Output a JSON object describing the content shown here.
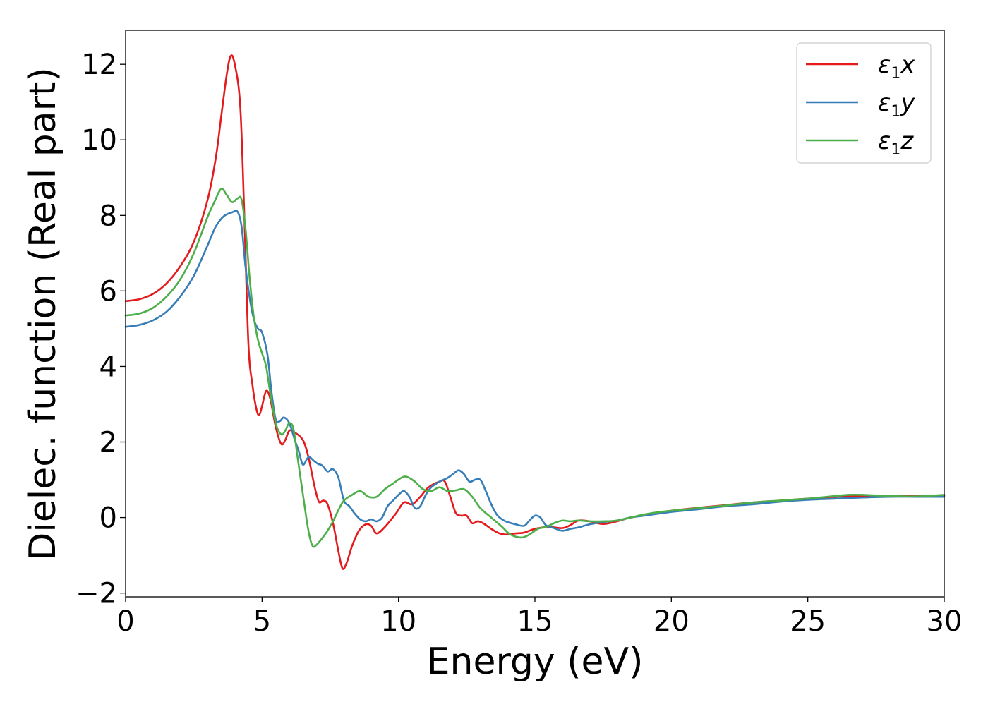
{
  "chart_data": {
    "type": "line",
    "xlabel": "Energy (eV)",
    "ylabel": "Dielec. function (Real part)",
    "xlim": [
      0,
      30
    ],
    "ylim": [
      -2.1,
      12.9
    ],
    "xticks": [
      0,
      5,
      10,
      15,
      20,
      25,
      30
    ],
    "xtick_labels": [
      "0",
      "5",
      "10",
      "15",
      "20",
      "25",
      "30"
    ],
    "yticks": [
      -2,
      0,
      2,
      4,
      6,
      8,
      10,
      12
    ],
    "ytick_labels": [
      "−2",
      "0",
      "2",
      "4",
      "6",
      "8",
      "10",
      "12"
    ],
    "grid": false,
    "legend_position": "top-right",
    "series": [
      {
        "name": "ε₁x",
        "legend_base": "ε",
        "legend_sub": "1",
        "legend_tail": "x",
        "color": "#e41a1c",
        "x": [
          0,
          0.5,
          1,
          1.5,
          2,
          2.5,
          3,
          3.3,
          3.5,
          3.7,
          3.85,
          4.0,
          4.2,
          4.35,
          4.5,
          4.65,
          4.8,
          4.9,
          5.0,
          5.15,
          5.3,
          5.5,
          5.7,
          5.85,
          6.0,
          6.2,
          6.5,
          6.7,
          6.9,
          7.0,
          7.1,
          7.25,
          7.4,
          7.6,
          7.8,
          7.95,
          8.1,
          8.3,
          8.55,
          8.8,
          9.0,
          9.2,
          9.5,
          9.9,
          10.2,
          10.5,
          10.8,
          11.1,
          11.5,
          11.7,
          11.9,
          12.1,
          12.3,
          12.5,
          12.7,
          12.9,
          13.1,
          13.4,
          13.7,
          14.0,
          14.3,
          14.6,
          15.0,
          15.5,
          16.0,
          16.3,
          16.6,
          17.0,
          17.5,
          18.0,
          18.5,
          19.0,
          19.5,
          20.0,
          21.0,
          22.0,
          23.0,
          24.0,
          25.0,
          26.0,
          27.0,
          28.0,
          29.0,
          30.0
        ],
        "y": [
          5.73,
          5.78,
          5.92,
          6.2,
          6.65,
          7.3,
          8.4,
          9.5,
          10.6,
          11.7,
          12.22,
          12.0,
          10.9,
          8.0,
          4.6,
          3.5,
          2.85,
          2.72,
          2.95,
          3.35,
          3.15,
          2.4,
          1.95,
          2.05,
          2.3,
          2.25,
          2.05,
          1.6,
          0.9,
          0.6,
          0.4,
          0.45,
          0.35,
          -0.15,
          -0.9,
          -1.35,
          -1.2,
          -0.75,
          -0.35,
          -0.18,
          -0.22,
          -0.42,
          -0.25,
          0.1,
          0.4,
          0.35,
          0.55,
          0.8,
          0.95,
          0.95,
          0.55,
          0.12,
          0.05,
          0.05,
          -0.15,
          -0.1,
          -0.15,
          -0.3,
          -0.42,
          -0.45,
          -0.42,
          -0.4,
          -0.3,
          -0.25,
          -0.28,
          -0.2,
          -0.08,
          -0.1,
          -0.17,
          -0.1,
          0.0,
          0.06,
          0.12,
          0.18,
          0.26,
          0.33,
          0.4,
          0.45,
          0.5,
          0.55,
          0.57,
          0.58,
          0.58,
          0.58
        ]
      },
      {
        "name": "ε₁y",
        "legend_base": "ε",
        "legend_sub": "1",
        "legend_tail": "y",
        "color": "#377eb8",
        "x": [
          0,
          0.5,
          1,
          1.5,
          2,
          2.5,
          3,
          3.3,
          3.6,
          3.9,
          4.1,
          4.25,
          4.4,
          4.55,
          4.7,
          4.85,
          5.0,
          5.2,
          5.35,
          5.5,
          5.65,
          5.8,
          6.0,
          6.2,
          6.35,
          6.5,
          6.7,
          6.9,
          7.05,
          7.2,
          7.4,
          7.6,
          7.8,
          8.0,
          8.2,
          8.4,
          8.6,
          8.8,
          9.0,
          9.2,
          9.4,
          9.6,
          9.8,
          10.0,
          10.2,
          10.4,
          10.6,
          10.8,
          11.0,
          11.2,
          11.5,
          11.8,
          12.0,
          12.2,
          12.4,
          12.6,
          12.8,
          13.0,
          13.2,
          13.4,
          13.6,
          13.8,
          14.0,
          14.3,
          14.6,
          14.8,
          15.0,
          15.2,
          15.4,
          15.7,
          16.0,
          16.3,
          16.6,
          17.0,
          17.5,
          18.0,
          18.5,
          19.0,
          19.5,
          20.0,
          21.0,
          22.0,
          23.0,
          24.0,
          25.0,
          26.0,
          27.0,
          28.0,
          29.0,
          30.0
        ],
        "y": [
          5.05,
          5.1,
          5.22,
          5.45,
          5.85,
          6.4,
          7.2,
          7.7,
          7.98,
          8.08,
          8.1,
          7.7,
          6.6,
          5.8,
          5.25,
          5.0,
          4.9,
          4.3,
          3.3,
          2.6,
          2.55,
          2.65,
          2.5,
          2.05,
          1.75,
          1.4,
          1.6,
          1.5,
          1.42,
          1.38,
          1.22,
          1.28,
          1.05,
          0.45,
          0.3,
          0.1,
          -0.05,
          -0.1,
          -0.05,
          -0.1,
          0.0,
          0.3,
          0.45,
          0.6,
          0.7,
          0.55,
          0.25,
          0.3,
          0.6,
          0.8,
          0.95,
          1.05,
          1.15,
          1.25,
          1.15,
          0.95,
          1.0,
          1.0,
          0.7,
          0.35,
          0.08,
          -0.05,
          -0.12,
          -0.18,
          -0.22,
          -0.08,
          0.05,
          0.0,
          -0.2,
          -0.28,
          -0.35,
          -0.3,
          -0.26,
          -0.18,
          -0.12,
          -0.08,
          0.0,
          0.05,
          0.1,
          0.15,
          0.22,
          0.3,
          0.35,
          0.42,
          0.47,
          0.5,
          0.53,
          0.55,
          0.55,
          0.55
        ]
      },
      {
        "name": "ε₁z",
        "legend_base": "ε",
        "legend_sub": "1",
        "legend_tail": "z",
        "color": "#4daf4a",
        "x": [
          0,
          0.5,
          1,
          1.5,
          2,
          2.5,
          3,
          3.25,
          3.5,
          3.7,
          3.9,
          4.1,
          4.25,
          4.4,
          4.55,
          4.7,
          4.85,
          5.0,
          5.15,
          5.3,
          5.5,
          5.7,
          5.85,
          6.0,
          6.15,
          6.3,
          6.5,
          6.7,
          6.85,
          7.0,
          7.2,
          7.4,
          7.6,
          7.8,
          8.0,
          8.3,
          8.6,
          8.9,
          9.2,
          9.5,
          9.8,
          10.1,
          10.3,
          10.6,
          10.9,
          11.2,
          11.5,
          11.8,
          12.1,
          12.4,
          12.7,
          13.0,
          13.4,
          13.8,
          14.1,
          14.5,
          14.8,
          15.1,
          15.4,
          15.7,
          16.0,
          16.3,
          16.6,
          17.0,
          17.5,
          18.0,
          18.5,
          19.0,
          19.5,
          20.0,
          21.0,
          22.0,
          23.0,
          24.0,
          25.0,
          26.0,
          26.5,
          27.0,
          28.0,
          29.0,
          30.0
        ],
        "y": [
          5.35,
          5.4,
          5.55,
          5.85,
          6.3,
          7.0,
          7.95,
          8.35,
          8.7,
          8.55,
          8.35,
          8.45,
          8.42,
          7.6,
          6.3,
          5.3,
          4.7,
          4.35,
          4.0,
          3.3,
          2.5,
          2.2,
          2.3,
          2.5,
          2.35,
          1.6,
          0.6,
          -0.35,
          -0.75,
          -0.72,
          -0.55,
          -0.35,
          -0.1,
          0.2,
          0.45,
          0.6,
          0.7,
          0.55,
          0.55,
          0.75,
          0.9,
          1.05,
          1.08,
          0.95,
          0.75,
          0.7,
          0.8,
          0.7,
          0.72,
          0.75,
          0.55,
          0.25,
          0.0,
          -0.25,
          -0.45,
          -0.53,
          -0.45,
          -0.3,
          -0.25,
          -0.15,
          -0.08,
          -0.1,
          -0.08,
          -0.1,
          -0.1,
          -0.08,
          0.0,
          0.08,
          0.14,
          0.18,
          0.25,
          0.32,
          0.4,
          0.45,
          0.5,
          0.57,
          0.6,
          0.6,
          0.57,
          0.56,
          0.6
        ]
      }
    ]
  }
}
